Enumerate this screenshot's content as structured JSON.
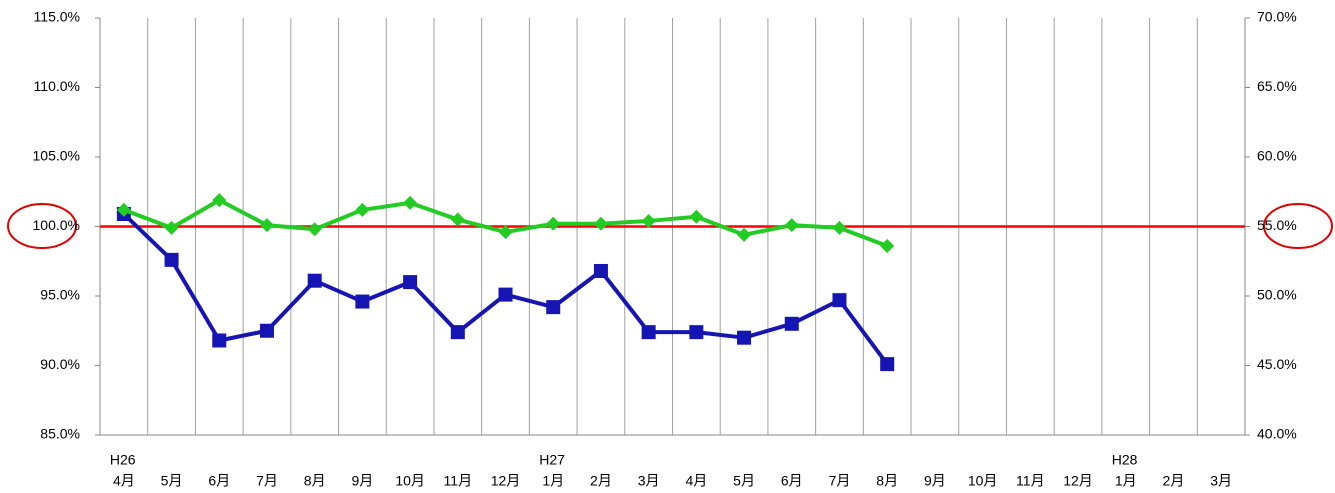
{
  "chart_data": {
    "type": "line",
    "categories": [
      "4月",
      "5月",
      "6月",
      "7月",
      "8月",
      "9月",
      "10月",
      "11月",
      "12月",
      "1月",
      "2月",
      "3月",
      "4月",
      "5月",
      "6月",
      "7月",
      "8月",
      "9月",
      "10月",
      "11月",
      "12月",
      "1月",
      "2月",
      "3月"
    ],
    "year_labels": [
      "H26",
      null,
      null,
      null,
      null,
      null,
      null,
      null,
      null,
      "H27",
      null,
      null,
      null,
      null,
      null,
      null,
      null,
      null,
      null,
      null,
      null,
      "H28",
      null,
      null
    ],
    "ylim": [
      85,
      115
    ],
    "yticks": [
      {
        "value": 85,
        "label": "85.0%"
      },
      {
        "value": 90,
        "label": "90.0%"
      },
      {
        "value": 95,
        "label": "95.0%"
      },
      {
        "value": 100,
        "label": "100.0%"
      },
      {
        "value": 105,
        "label": "105.0%"
      },
      {
        "value": 110,
        "label": "110.0%"
      },
      {
        "value": 115,
        "label": "115.0%"
      }
    ],
    "y2lim": [
      40,
      70
    ],
    "y2ticks": [
      {
        "value": 40,
        "label": "40.0%"
      },
      {
        "value": 45,
        "label": "45.0%"
      },
      {
        "value": 50,
        "label": "50.0%"
      },
      {
        "value": 55,
        "label": "55.0%"
      },
      {
        "value": 60,
        "label": "60.0%"
      },
      {
        "value": 65,
        "label": "65.0%"
      },
      {
        "value": 70,
        "label": "70.0%"
      }
    ],
    "x_grid": true,
    "reference_line": {
      "value": 100,
      "color": "#ff0000"
    },
    "series": [
      {
        "color": "#1515b4",
        "marker": "square",
        "values": [
          100.9,
          97.6,
          91.8,
          92.5,
          96.1,
          94.6,
          96.0,
          92.4,
          95.1,
          94.2,
          96.8,
          92.4,
          92.4,
          92.0,
          93.0,
          94.7,
          90.1,
          null,
          null,
          null,
          null,
          null,
          null,
          null
        ]
      },
      {
        "color": "#22cc22",
        "marker": "diamond",
        "axis": "y2",
        "values": [
          56.2,
          54.9,
          56.9,
          55.1,
          54.8,
          56.2,
          56.7,
          55.5,
          54.6,
          55.2,
          55.2,
          55.4,
          55.7,
          54.4,
          55.1,
          54.9,
          53.6,
          null,
          null,
          null,
          null,
          null,
          null,
          null
        ]
      }
    ]
  }
}
